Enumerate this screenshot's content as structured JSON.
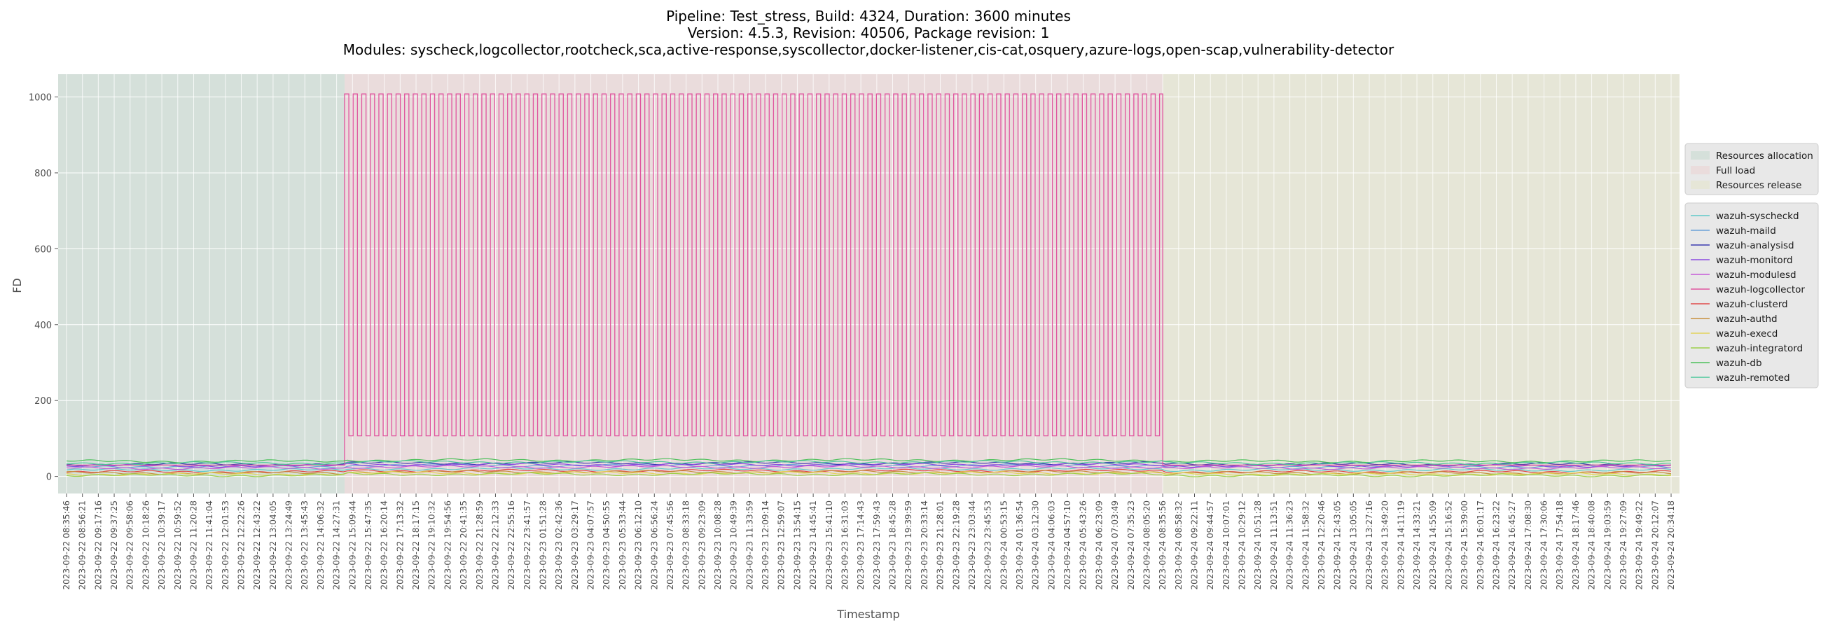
{
  "chart_data": {
    "type": "line",
    "title_lines": [
      "Pipeline: Test_stress, Build: 4324, Duration: 3600 minutes",
      "Version: 4.5.3, Revision: 40506, Package revision: 1",
      "Modules: syscheck,logcollector,rootcheck,sca,active-response,syscollector,docker-listener,cis-cat,osquery,azure-logs,open-scap,vulnerability-detector"
    ],
    "xlabel": "Timestamp",
    "ylabel": "FD",
    "ylim": [
      -45,
      1060
    ],
    "yticks": [
      0,
      200,
      400,
      600,
      800,
      1000
    ],
    "grid": true,
    "legend_placement": "right",
    "x_tick_labels": [
      "2023-09-22 08:35:46",
      "2023-09-22 08:56:21",
      "2023-09-22 09:17:16",
      "2023-09-22 09:37:25",
      "2023-09-22 09:58:06",
      "2023-09-22 10:18:26",
      "2023-09-22 10:39:17",
      "2023-09-22 10:59:52",
      "2023-09-22 11:20:28",
      "2023-09-22 11:41:04",
      "2023-09-22 12:01:53",
      "2023-09-22 12:22:26",
      "2023-09-22 12:43:22",
      "2023-09-22 13:04:05",
      "2023-09-22 13:24:49",
      "2023-09-22 13:45:43",
      "2023-09-22 14:06:32",
      "2023-09-22 14:27:31",
      "2023-09-22 15:09:44",
      "2023-09-22 15:47:35",
      "2023-09-22 16:20:14",
      "2023-09-22 17:13:32",
      "2023-09-22 18:17:15",
      "2023-09-22 19:10:32",
      "2023-09-22 19:54:56",
      "2023-09-22 20:41:35",
      "2023-09-22 21:28:59",
      "2023-09-22 22:12:33",
      "2023-09-22 22:55:16",
      "2023-09-22 23:41:57",
      "2023-09-23 01:51:28",
      "2023-09-23 02:42:36",
      "2023-09-23 03:29:17",
      "2023-09-23 04:07:57",
      "2023-09-23 04:50:55",
      "2023-09-23 05:33:44",
      "2023-09-23 06:12:10",
      "2023-09-23 06:56:24",
      "2023-09-23 07:45:56",
      "2023-09-23 08:33:18",
      "2023-09-23 09:23:09",
      "2023-09-23 10:08:28",
      "2023-09-23 10:49:39",
      "2023-09-23 11:33:59",
      "2023-09-23 12:09:14",
      "2023-09-23 12:59:07",
      "2023-09-23 13:54:15",
      "2023-09-23 14:45:41",
      "2023-09-23 15:41:10",
      "2023-09-23 16:31:03",
      "2023-09-23 17:14:43",
      "2023-09-23 17:59:43",
      "2023-09-23 18:45:28",
      "2023-09-23 19:39:59",
      "2023-09-23 20:33:14",
      "2023-09-23 21:28:01",
      "2023-09-23 22:19:28",
      "2023-09-23 23:03:44",
      "2023-09-23 23:45:53",
      "2023-09-24 00:53:15",
      "2023-09-24 01:36:54",
      "2023-09-24 03:12:30",
      "2023-09-24 04:06:03",
      "2023-09-24 04:57:10",
      "2023-09-24 05:43:26",
      "2023-09-24 06:23:09",
      "2023-09-24 07:03:49",
      "2023-09-24 07:35:23",
      "2023-09-24 08:05:20",
      "2023-09-24 08:35:56",
      "2023-09-24 08:58:32",
      "2023-09-24 09:22:11",
      "2023-09-24 09:44:57",
      "2023-09-24 10:07:01",
      "2023-09-24 10:29:12",
      "2023-09-24 10:51:28",
      "2023-09-24 11:13:51",
      "2023-09-24 11:36:23",
      "2023-09-24 11:58:32",
      "2023-09-24 12:20:46",
      "2023-09-24 12:43:05",
      "2023-09-24 13:05:05",
      "2023-09-24 13:27:16",
      "2023-09-24 13:49:20",
      "2023-09-24 14:11:19",
      "2023-09-24 14:33:21",
      "2023-09-24 14:55:09",
      "2023-09-24 15:16:52",
      "2023-09-24 15:39:00",
      "2023-09-24 16:01:17",
      "2023-09-24 16:23:22",
      "2023-09-24 16:45:27",
      "2023-09-24 17:08:30",
      "2023-09-24 17:30:06",
      "2023-09-24 17:54:18",
      "2023-09-24 18:17:46",
      "2023-09-24 18:40:08",
      "2023-09-24 19:03:59",
      "2023-09-24 19:27:09",
      "2023-09-24 19:49:22",
      "2023-09-24 20:12:07",
      "2023-09-24 20:34:18"
    ],
    "phases": [
      {
        "name": "Resources allocation",
        "start_index": 0,
        "end_index": 17.5,
        "color": "#d5e0da"
      },
      {
        "name": "Full load",
        "start_index": 17.5,
        "end_index": 69,
        "color": "#eadcdc"
      },
      {
        "name": "Resources release",
        "start_index": 69,
        "end_index": 100,
        "color": "#e6e6d7"
      }
    ],
    "series": [
      {
        "name": "wazuh-syscheckd",
        "color": "#5fc9c9",
        "level": 17
      },
      {
        "name": "wazuh-maild",
        "color": "#6aa1d8",
        "level": 26
      },
      {
        "name": "wazuh-analysisd",
        "color": "#3a3ab0",
        "level": 32
      },
      {
        "name": "wazuh-monitord",
        "color": "#8a4ae0",
        "level": 28
      },
      {
        "name": "wazuh-modulesd",
        "color": "#c65ad8",
        "level": 22
      },
      {
        "name": "wazuh-logcollector",
        "color": "#e0559f",
        "high": 1008,
        "low": 107,
        "base": 30
      },
      {
        "name": "wazuh-clusterd",
        "color": "#e04a4a",
        "level": 12
      },
      {
        "name": "wazuh-authd",
        "color": "#c88f3e",
        "level": 9
      },
      {
        "name": "wazuh-execd",
        "color": "#e3d35a",
        "level": 6
      },
      {
        "name": "wazuh-integratord",
        "color": "#9ccf4a",
        "level": 3
      },
      {
        "name": "wazuh-db",
        "color": "#4cc05a",
        "level": 40
      },
      {
        "name": "wazuh-remoted",
        "color": "#4ac89a",
        "level": 35
      }
    ]
  }
}
